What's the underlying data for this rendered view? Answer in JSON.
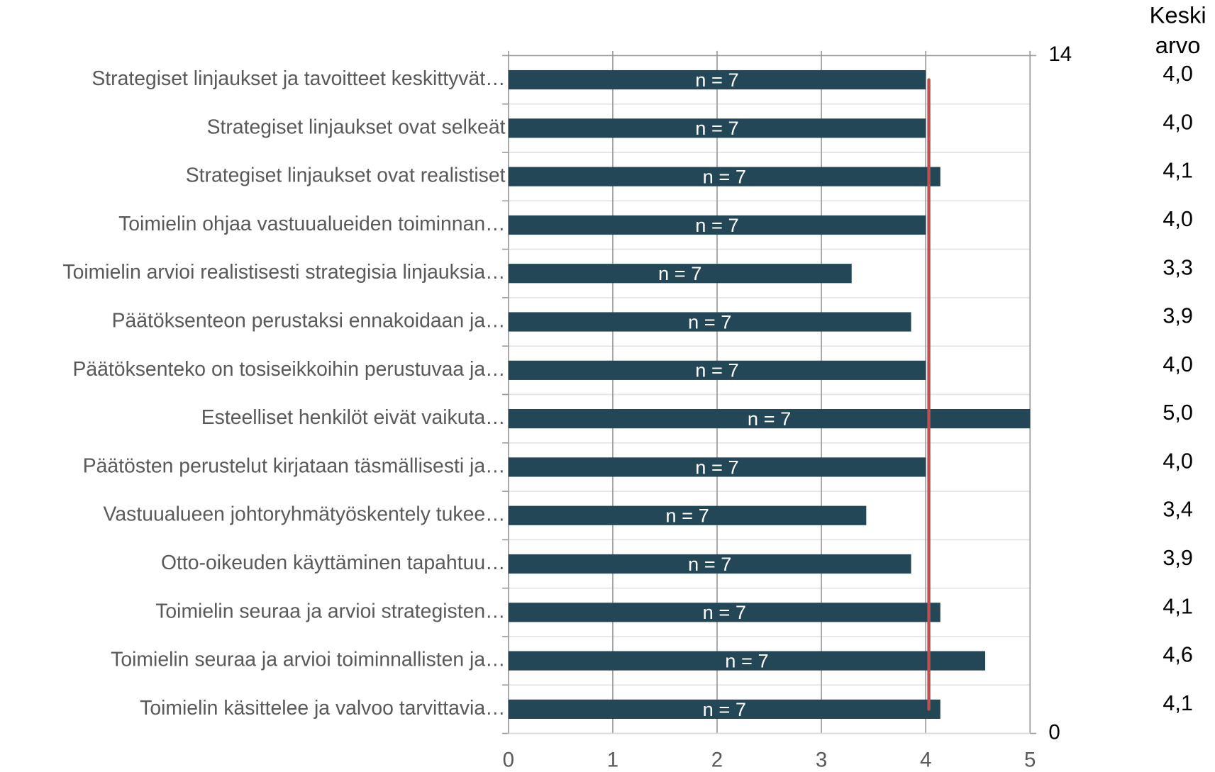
{
  "chart_data": {
    "type": "bar",
    "orientation": "horizontal",
    "categories": [
      "Strategiset linjaukset ja tavoitteet keskittyvät…",
      "Strategiset linjaukset ovat selkeät",
      "Strategiset linjaukset ovat realistiset",
      "Toimielin ohjaa vastuualueiden toiminnan…",
      "Toimielin arvioi realistisesti strategisia linjauksia…",
      "Päätöksenteon perustaksi ennakoidaan ja…",
      "Päätöksenteko on tosiseikkoihin perustuvaa ja…",
      "Esteelliset henkilöt eivät vaikuta…",
      "Päätösten perustelut kirjataan täsmällisesti ja…",
      "Vastuualueen johtoryhmätyöskentely tukee…",
      "Otto-oikeuden käyttäminen tapahtuu…",
      "Toimielin seuraa ja arvioi strategisten…",
      "Toimielin seuraa ja arvioi toiminnallisten ja…",
      "Toimielin käsittelee ja valvoo tarvittavia…"
    ],
    "values": [
      4.0,
      4.0,
      4.14,
      4.0,
      3.29,
      3.86,
      4.0,
      5.0,
      4.0,
      3.43,
      3.86,
      4.14,
      4.57,
      4.14
    ],
    "value_labels": [
      "4,0",
      "4,0",
      "4,1",
      "4,0",
      "3,3",
      "3,9",
      "4,0",
      "5,0",
      "4,0",
      "3,4",
      "3,9",
      "4,1",
      "4,6",
      "4,1"
    ],
    "count_labels": [
      "n = 7",
      "n = 7",
      "n = 7",
      "n = 7",
      "n = 7",
      "n = 7",
      "n = 7",
      "n = 7",
      "n = 7",
      "n = 7",
      "n = 7",
      "n = 7",
      "n = 7",
      "n = 7"
    ],
    "column_title": [
      "Keski",
      "arvo"
    ],
    "color": "#234756",
    "xlim": [
      0,
      5
    ],
    "xticks": [
      0,
      1,
      2,
      3,
      4,
      5
    ],
    "y2lim": [
      0,
      14
    ],
    "y2ticks": [
      0,
      14
    ],
    "reference_line": {
      "x": 4.03,
      "y2": [
        0.5,
        13.5
      ],
      "color": "#c0504d"
    },
    "grid": true
  }
}
